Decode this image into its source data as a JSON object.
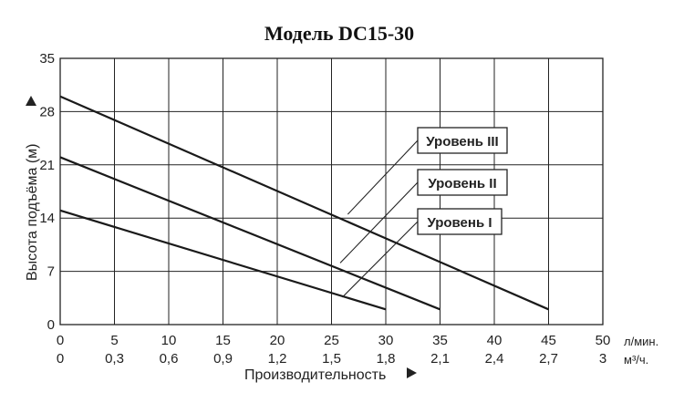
{
  "chart_data": {
    "type": "line",
    "title": "Модель DC15-30",
    "ylabel": "Высота подъёма (м)",
    "xlabel": "Производительность",
    "x_unit_primary": "л/мин.",
    "x_unit_secondary": "м³/ч.",
    "xlim": [
      0,
      50
    ],
    "ylim": [
      0,
      35
    ],
    "x_ticks": [
      "0",
      "5",
      "10",
      "15",
      "20",
      "25",
      "30",
      "35",
      "40",
      "45",
      "50"
    ],
    "x_ticks_secondary": [
      "0",
      "0,3",
      "0,6",
      "0,9",
      "1,2",
      "1,5",
      "1,8",
      "2,1",
      "2,4",
      "2,7",
      "3"
    ],
    "y_ticks": [
      "0",
      "7",
      "14",
      "21",
      "28",
      "35"
    ],
    "grid": true,
    "series": [
      {
        "name": "Уровень I",
        "x": [
          0,
          30
        ],
        "y": [
          15,
          2
        ]
      },
      {
        "name": "Уровень II",
        "x": [
          0,
          35
        ],
        "y": [
          22,
          2
        ]
      },
      {
        "name": "Уровень III",
        "x": [
          0,
          45
        ],
        "y": [
          30,
          2
        ]
      }
    ],
    "annotations": [
      {
        "series": "Уровень III",
        "label": "Уровень III",
        "point_x": 26.5,
        "point_y": 14.5
      },
      {
        "series": "Уровень II",
        "label": "Уровень II",
        "point_x": 25.8,
        "point_y": 8.1
      },
      {
        "series": "Уровень I",
        "label": "Уровень I",
        "point_x": 26,
        "point_y": 3.6
      }
    ]
  }
}
